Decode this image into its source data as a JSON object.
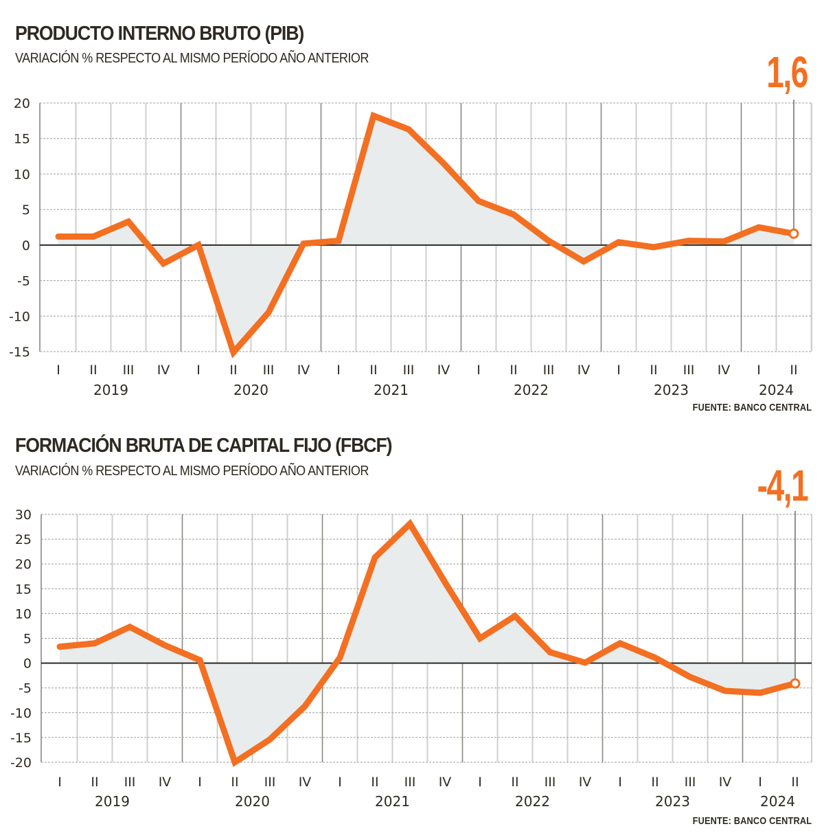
{
  "colors": {
    "line": "#f36f21",
    "area": "#e8ecec",
    "grid_major": "#8a8680",
    "grid_minor": "#cfcfcf",
    "zero_line": "#2e2a22",
    "text": "#2e2a22"
  },
  "chart_data": [
    {
      "type": "area",
      "title": "PRODUCTO INTERNO BRUTO (PIB)",
      "subtitle": "VARIACIÓN % RESPECTO AL MISMO PERÍODO AÑO ANTERIOR",
      "highlight_value": "1,6",
      "source": "FUENTE: BANCO CENTRAL",
      "xlabel": "",
      "ylabel": "",
      "ylim": [
        -15,
        20
      ],
      "yticks": [
        20,
        15,
        10,
        5,
        0,
        -5,
        -10,
        -15
      ],
      "grid": true,
      "quarters": [
        "I",
        "II",
        "III",
        "IV",
        "I",
        "II",
        "III",
        "IV",
        "I",
        "II",
        "III",
        "IV",
        "I",
        "II",
        "III",
        "IV",
        "I",
        "II",
        "III",
        "IV",
        "I",
        "II"
      ],
      "years": [
        {
          "label": "2019",
          "start": 0,
          "end": 3
        },
        {
          "label": "2020",
          "start": 4,
          "end": 7
        },
        {
          "label": "2021",
          "start": 8,
          "end": 11
        },
        {
          "label": "2022",
          "start": 12,
          "end": 15
        },
        {
          "label": "2023",
          "start": 16,
          "end": 19
        },
        {
          "label": "2024",
          "start": 20,
          "end": 21
        }
      ],
      "series": [
        {
          "name": "PIB",
          "values": [
            1.2,
            1.2,
            3.3,
            -2.6,
            0.0,
            -15.1,
            -9.5,
            0.2,
            0.6,
            18.2,
            16.3,
            11.5,
            6.2,
            4.3,
            0.6,
            -2.3,
            0.4,
            -0.3,
            0.6,
            0.5,
            2.5,
            1.6
          ]
        }
      ]
    },
    {
      "type": "area",
      "title": "FORMACIÓN BRUTA DE CAPITAL FIJO (FBCF)",
      "subtitle": "VARIACIÓN % RESPECTO AL MISMO PERÍODO AÑO ANTERIOR",
      "highlight_value": "-4,1",
      "source": "FUENTE: BANCO CENTRAL",
      "xlabel": "",
      "ylabel": "",
      "ylim": [
        -20,
        30
      ],
      "yticks": [
        30,
        25,
        20,
        15,
        10,
        5,
        0,
        -5,
        -10,
        -15,
        -20
      ],
      "grid": true,
      "quarters": [
        "I",
        "II",
        "III",
        "IV",
        "I",
        "II",
        "III",
        "IV",
        "I",
        "II",
        "III",
        "IV",
        "I",
        "II",
        "III",
        "IV",
        "I",
        "II",
        "III",
        "IV",
        "I",
        "II"
      ],
      "years": [
        {
          "label": "2019",
          "start": 0,
          "end": 3
        },
        {
          "label": "2020",
          "start": 4,
          "end": 7
        },
        {
          "label": "2021",
          "start": 8,
          "end": 11
        },
        {
          "label": "2022",
          "start": 12,
          "end": 15
        },
        {
          "label": "2023",
          "start": 16,
          "end": 19
        },
        {
          "label": "2024",
          "start": 20,
          "end": 21
        }
      ],
      "series": [
        {
          "name": "FBCF",
          "values": [
            3.3,
            4.0,
            7.3,
            3.6,
            0.6,
            -20.0,
            -15.4,
            -8.7,
            1.1,
            21.3,
            28.1,
            16.3,
            5.0,
            9.5,
            2.2,
            0.1,
            4.0,
            1.1,
            -2.8,
            -5.6,
            -6.0,
            -4.1
          ]
        }
      ]
    }
  ]
}
